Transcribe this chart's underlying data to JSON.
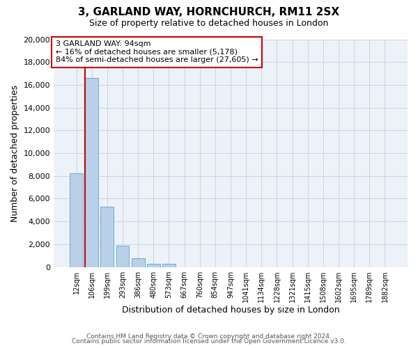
{
  "title": "3, GARLAND WAY, HORNCHURCH, RM11 2SX",
  "subtitle": "Size of property relative to detached houses in London",
  "xlabel": "Distribution of detached houses by size in London",
  "ylabel": "Number of detached properties",
  "bar_labels": [
    "12sqm",
    "106sqm",
    "199sqm",
    "293sqm",
    "386sqm",
    "480sqm",
    "573sqm",
    "667sqm",
    "760sqm",
    "854sqm",
    "947sqm",
    "1041sqm",
    "1134sqm",
    "1228sqm",
    "1321sqm",
    "1415sqm",
    "1508sqm",
    "1602sqm",
    "1695sqm",
    "1789sqm",
    "1882sqm"
  ],
  "bar_values": [
    8200,
    16600,
    5300,
    1850,
    800,
    280,
    260,
    0,
    0,
    0,
    0,
    0,
    0,
    0,
    0,
    0,
    0,
    0,
    0,
    0,
    0
  ],
  "bar_color": "#b8d0e8",
  "bar_edge_color": "#6aaad4",
  "marker_color": "#cc0000",
  "annotation_title": "3 GARLAND WAY: 94sqm",
  "annotation_line1": "← 16% of detached houses are smaller (5,178)",
  "annotation_line2": "84% of semi-detached houses are larger (27,605) →",
  "annotation_box_edge_color": "#cc0000",
  "ylim": [
    0,
    20000
  ],
  "yticks": [
    0,
    2000,
    4000,
    6000,
    8000,
    10000,
    12000,
    14000,
    16000,
    18000,
    20000
  ],
  "footer1": "Contains HM Land Registry data © Crown copyright and database right 2024.",
  "footer2": "Contains public sector information licensed under the Open Government Licence v3.0.",
  "bg_color": "#edf2f8"
}
